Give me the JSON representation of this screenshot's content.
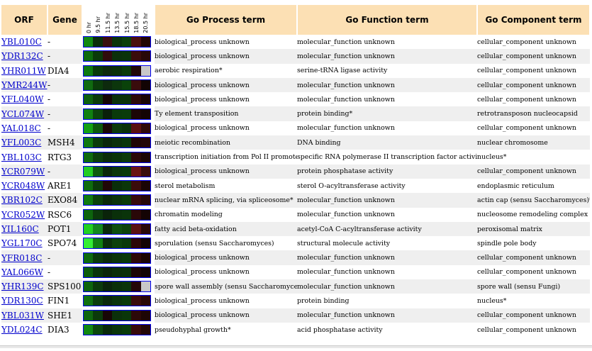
{
  "headers": {
    "orf": "ORF",
    "gene": "Gene",
    "time_labels": [
      "0 hr",
      "9.5 hr",
      "11.5 hr",
      "13.5 hr",
      "15.5 hr",
      "18.5 hr",
      "20.5 hr"
    ],
    "process": "Go Process term",
    "function": "Go Function term",
    "component": "Go Component term"
  },
  "rows": [
    {
      "orf": "YBL010C",
      "gene": "-",
      "process": "biological_process unknown",
      "function": "molecular_function unknown",
      "component": "cellular_component unknown",
      "colors": [
        "#118811",
        "#0a2e0a",
        "#3a0f0f",
        "#0b330b",
        "#0c3f0c",
        "#4a1010",
        "#220505"
      ]
    },
    {
      "orf": "YDR132C",
      "gene": "-",
      "process": "biological_process unknown",
      "function": "molecular_function unknown",
      "component": "cellular_component unknown",
      "colors": [
        "#0c6a0c",
        "#0a3a0a",
        "#300c0c",
        "#0b300b",
        "#0a330a",
        "#3a0c0c",
        "#280808"
      ]
    },
    {
      "orf": "YHR011W",
      "gene": "DIA4",
      "process": "aerobic respiration*",
      "function": "serine-tRNA ligase activity",
      "component": "cellular_component unknown",
      "colors": [
        "#0f7a0f",
        "#0a3a0a",
        "#0e2a0e",
        "#0a300a",
        "#0a3a0a",
        "#200808",
        "#c8c8c8"
      ]
    },
    {
      "orf": "YMR244W",
      "gene": "-",
      "process": "biological_process unknown",
      "function": "molecular_function unknown",
      "component": "cellular_component unknown",
      "colors": [
        "#106a10",
        "#0a3c0a",
        "#0d2a0d",
        "#0c360c",
        "#0a420a",
        "#3a0c0c",
        "#120404"
      ]
    },
    {
      "orf": "YFL040W",
      "gene": "-",
      "process": "biological_process unknown",
      "function": "molecular_function unknown",
      "component": "cellular_component unknown",
      "colors": [
        "#0e600e",
        "#0b3a0b",
        "#150505",
        "#0a300a",
        "#0a300a",
        "#2e0a0a",
        "#1a0505"
      ]
    },
    {
      "orf": "YCL074W",
      "gene": "-",
      "process": "Ty element transposition",
      "function": "protein binding*",
      "component": "retrotransposon nucleocapsid",
      "colors": [
        "#118011",
        "#0c440c",
        "#0a200a",
        "#0a3a0a",
        "#0a3c0a",
        "#1c0606",
        "#140404"
      ]
    },
    {
      "orf": "YAL018C",
      "gene": "-",
      "process": "biological_process unknown",
      "function": "molecular_function unknown",
      "component": "cellular_component unknown",
      "colors": [
        "#14a014",
        "#0e580e",
        "#1a0707",
        "#0b380b",
        "#0a300a",
        "#5a1010",
        "#300909"
      ]
    },
    {
      "orf": "YFL003C",
      "gene": "MSH4",
      "process": "meiotic recombination",
      "function": "DNA binding",
      "component": "nuclear chromosome",
      "colors": [
        "#107810",
        "#0b3c0b",
        "#0a280a",
        "#0b300b",
        "#0a360a",
        "#200606",
        "#240707"
      ]
    },
    {
      "orf": "YBL103C",
      "gene": "RTG3",
      "process": "transcription initiation from Pol II promoter",
      "function": "specific RNA polymerase II transcription factor activity",
      "component": "nucleus*",
      "colors": [
        "#0e6a0e",
        "#0c3e0c",
        "#0b2c0b",
        "#0a330a",
        "#0c3a0c",
        "#2a0808",
        "#1c0505"
      ]
    },
    {
      "orf": "YCR079W",
      "gene": "-",
      "process": "biological_process unknown",
      "function": "protein phosphatase activity",
      "component": "cellular_component unknown",
      "colors": [
        "#22cc22",
        "#0e5a0e",
        "#0a280a",
        "#0b360b",
        "#0a3a0a",
        "#6a1414",
        "#3a0c0c"
      ]
    },
    {
      "orf": "YCR048W",
      "gene": "ARE1",
      "process": "sterol metabolism",
      "function": "sterol O-acyltransferase activity",
      "component": "endoplasmic reticulum",
      "colors": [
        "#0e6c0e",
        "#0b3a0b",
        "#200707",
        "#0a2e0a",
        "#0b360b",
        "#3a0c0c",
        "#1a0505"
      ]
    },
    {
      "orf": "YBR102C",
      "gene": "EXO84",
      "process": "nuclear mRNA splicing, via spliceosome*",
      "function": "molecular_function unknown",
      "component": "actin cap (sensu Saccharomyces)*",
      "colors": [
        "#0f7a0f",
        "#0b420b",
        "#0a2a0a",
        "#0b340b",
        "#0a3c0a",
        "#380b0b",
        "#280808"
      ]
    },
    {
      "orf": "YCR052W",
      "gene": "RSC6",
      "process": "chromatin modeling",
      "function": "molecular_function unknown",
      "component": "nucleosome remodeling complex",
      "colors": [
        "#0d640d",
        "#0b380b",
        "#0a240a",
        "#0a300a",
        "#0a340a",
        "#2a0808",
        "#140404"
      ]
    },
    {
      "orf": "YIL160C",
      "gene": "POT1",
      "process": "fatty acid beta-oxidation",
      "function": "acetyl-CoA C-acyltransferase activity",
      "component": "peroxisomal matrix",
      "colors": [
        "#22d022",
        "#13881e",
        "#0a2a0a",
        "#0e4e0e",
        "#0c420c",
        "#5a1212",
        "#2a0808"
      ]
    },
    {
      "orf": "YGL170C",
      "gene": "SPO74",
      "process": "sporulation (sensu Saccharomyces)",
      "function": "structural molecule activity",
      "component": "spindle pole body",
      "colors": [
        "#33ee33",
        "#118011",
        "#0a2e0a",
        "#0c400c",
        "#0a380a",
        "#2c0808",
        "#140404"
      ]
    },
    {
      "orf": "YFR018C",
      "gene": "-",
      "process": "biological_process unknown",
      "function": "molecular_function unknown",
      "component": "cellular_component unknown",
      "colors": [
        "#0e6a0e",
        "#0b3a0b",
        "#0b2a0b",
        "#0b330b",
        "#0a380a",
        "#2e0909",
        "#1c0505"
      ]
    },
    {
      "orf": "YAL066W",
      "gene": "-",
      "process": "biological_process unknown",
      "function": "molecular_function unknown",
      "component": "cellular_component unknown",
      "colors": [
        "#0c5c0c",
        "#0a340a",
        "#0a260a",
        "#0a2e0a",
        "#0a300a",
        "#1c0606",
        "#120404"
      ]
    },
    {
      "orf": "YHR139C",
      "gene": "SPS100",
      "process": "spore wall assembly (sensu Saccharomyces)",
      "function": "molecular_function unknown",
      "component": "spore wall (sensu Fungi)",
      "colors": [
        "#0d640d",
        "#0b3a0b",
        "#0a240a",
        "#0a300a",
        "#0b340b",
        "#240707",
        "#c8c8c8"
      ]
    },
    {
      "orf": "YDR130C",
      "gene": "FIN1",
      "process": "biological_process unknown",
      "function": "protein binding",
      "component": "nucleus*",
      "colors": [
        "#107010",
        "#0c3e0c",
        "#0b2a0b",
        "#0b340b",
        "#0a3a0a",
        "#3a0c0c",
        "#2a0808"
      ]
    },
    {
      "orf": "YBL031W",
      "gene": "SHE1",
      "process": "biological_process unknown",
      "function": "molecular_function unknown",
      "component": "cellular_component unknown",
      "colors": [
        "#0e660e",
        "#0b3a0b",
        "#180606",
        "#0b300b",
        "#0a360a",
        "#2c0909",
        "#1e0606"
      ]
    },
    {
      "orf": "YDL024C",
      "gene": "DIA3",
      "process": "pseudohyphal growth*",
      "function": "acid phosphatase activity",
      "component": "cellular_component unknown",
      "colors": [
        "#118811",
        "#0c480c",
        "#0a2a0a",
        "#0b360b",
        "#0a3c0a",
        "#380b0b",
        "#240707"
      ]
    }
  ]
}
